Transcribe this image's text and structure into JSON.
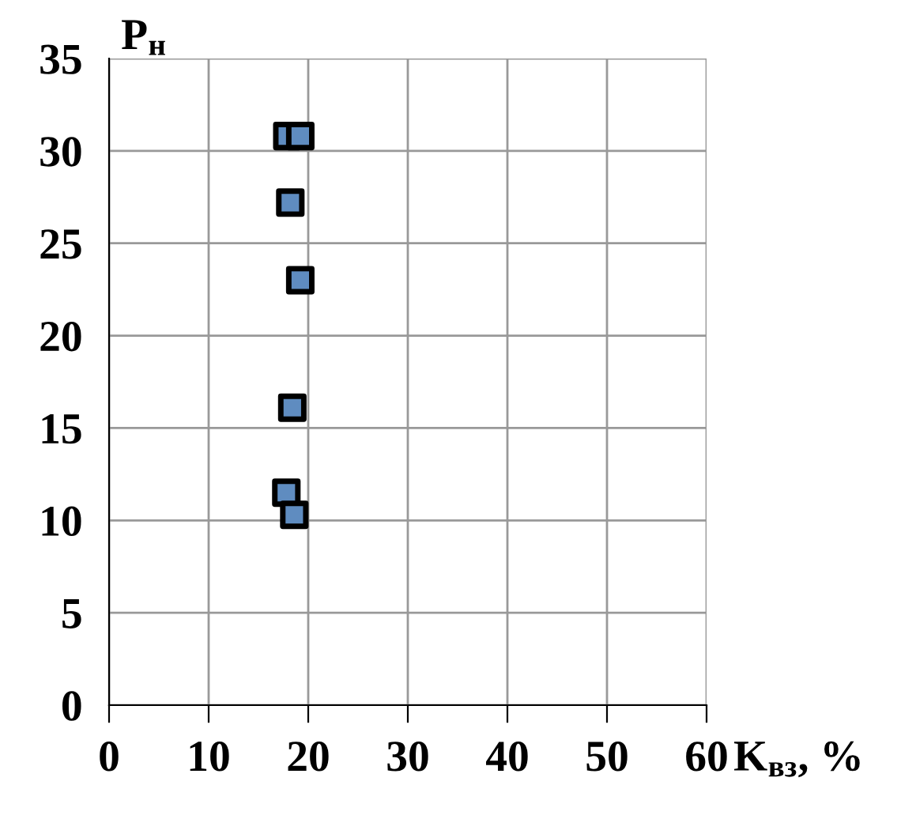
{
  "chart_data": {
    "type": "scatter",
    "xlabel": "K$_{вз}$, %",
    "ylabel": "P$_{н}$",
    "series": [
      {
        "color": "#5f8cc0",
        "x": [
          17.9,
          19.2,
          18.2,
          19.2,
          18.4,
          17.8,
          18.6
        ],
        "values": [
          30.8,
          30.8,
          27.2,
          23.0,
          16.1,
          11.5,
          10.3
        ]
      }
    ],
    "xlim": [
      0,
      60
    ],
    "xticks": [
      0,
      10,
      20,
      30,
      40,
      50,
      60
    ],
    "ylim": [
      0,
      35
    ],
    "yticks": [
      0,
      5,
      10,
      15,
      20,
      25,
      30,
      35
    ],
    "grid": true,
    "marker": "square"
  }
}
